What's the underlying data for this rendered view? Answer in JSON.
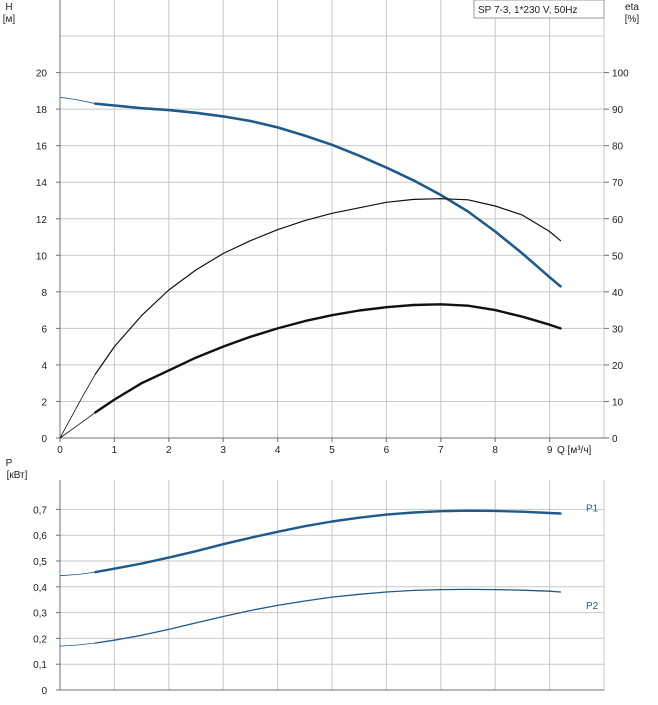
{
  "colors": {
    "grid": "#c8c8c8",
    "axis": "#707070",
    "blue": "#1f5a8c",
    "black": "#111111",
    "label_blue": "#2b5d8a"
  },
  "chart_data": [
    {
      "type": "line",
      "panel": "head-efficiency",
      "title": "SP 7-3, 1*230 V, 50Hz",
      "xlabel": "Q [м³/ч]",
      "ylabel": "H",
      "ylabel_unit": "[м]",
      "y2label": "eta",
      "y2label_unit": "[%]",
      "xlim": [
        0,
        10
      ],
      "ylim": [
        0,
        22
      ],
      "y2lim": [
        0,
        110
      ],
      "x_ticks": [
        0,
        1,
        2,
        3,
        4,
        5,
        6,
        7,
        8,
        9
      ],
      "y_ticks": [
        0,
        2,
        4,
        6,
        8,
        10,
        12,
        14,
        16,
        18,
        20
      ],
      "y2_ticks": [
        0,
        10,
        20,
        30,
        40,
        50,
        60,
        70,
        80,
        90,
        100
      ],
      "grid": true,
      "series": [
        {
          "key": "head",
          "axis": "left",
          "color": "blue",
          "width": 2.6,
          "extension": {
            "x": [
              0,
              0.25,
              0.5,
              0.65
            ],
            "y": [
              18.65,
              18.55,
              18.4,
              18.3
            ]
          },
          "x": [
            0.65,
            1,
            1.5,
            2,
            2.5,
            3,
            3.5,
            4,
            4.5,
            5,
            5.5,
            6,
            6.5,
            7,
            7.5,
            8,
            8.5,
            9,
            9.2
          ],
          "y": [
            18.3,
            18.2,
            18.05,
            17.95,
            17.8,
            17.6,
            17.35,
            17.0,
            16.55,
            16.05,
            15.45,
            14.8,
            14.1,
            13.3,
            12.4,
            11.3,
            10.1,
            8.8,
            8.3
          ]
        },
        {
          "key": "eta-pump",
          "axis": "right",
          "color": "black",
          "width": 1.2,
          "extension": {
            "x": [
              0,
              0.2,
              0.4,
              0.65
            ],
            "y": [
              0,
              5.5,
              11,
              17.5
            ]
          },
          "x": [
            0.65,
            1,
            1.5,
            2,
            2.5,
            3,
            3.5,
            4,
            4.5,
            5,
            5.5,
            6,
            6.5,
            7,
            7.5,
            8,
            8.5,
            9,
            9.2
          ],
          "y": [
            17.5,
            25,
            33.5,
            40.5,
            46,
            50.5,
            54,
            57,
            59.5,
            61.5,
            63,
            64.5,
            65.3,
            65.5,
            65.2,
            63.5,
            61,
            56.5,
            54
          ]
        },
        {
          "key": "eta-total",
          "axis": "right",
          "color": "black",
          "width": 2.4,
          "extension": {
            "x": [
              0,
              0.3,
              0.65
            ],
            "y": [
              0,
              3.2,
              7
            ]
          },
          "x": [
            0.65,
            1,
            1.5,
            2,
            2.5,
            3,
            3.5,
            4,
            4.5,
            5,
            5.5,
            6,
            6.5,
            7,
            7.5,
            8,
            8.5,
            9,
            9.2
          ],
          "y": [
            7,
            10.5,
            15,
            18.5,
            22,
            25,
            27.7,
            30,
            32,
            33.6,
            34.9,
            35.8,
            36.4,
            36.6,
            36.2,
            35,
            33.2,
            31,
            30
          ]
        }
      ]
    },
    {
      "type": "line",
      "panel": "power",
      "ylabel": "P",
      "ylabel_unit": "[кВт]",
      "xlim": [
        0,
        10
      ],
      "ylim": [
        0,
        0.8
      ],
      "y_ticks": [
        0,
        0.1,
        0.2,
        0.3,
        0.4,
        0.5,
        0.6,
        0.7
      ],
      "y_tick_labels": [
        "0",
        "0,1",
        "0,2",
        "0,3",
        "0,4",
        "0,5",
        "0,6",
        "0,7"
      ],
      "grid": true,
      "series": [
        {
          "name": "P1",
          "color": "blue",
          "width": 2.4,
          "extension": {
            "x": [
              0,
              0.35,
              0.65
            ],
            "y": [
              0.443,
              0.448,
              0.457
            ]
          },
          "x": [
            0.65,
            1,
            1.5,
            2,
            2.5,
            3,
            3.5,
            4,
            4.5,
            5,
            5.5,
            6,
            6.5,
            7,
            7.5,
            8,
            8.5,
            9,
            9.2
          ],
          "y": [
            0.457,
            0.47,
            0.49,
            0.513,
            0.538,
            0.565,
            0.59,
            0.613,
            0.635,
            0.653,
            0.668,
            0.68,
            0.688,
            0.693,
            0.695,
            0.694,
            0.691,
            0.686,
            0.684
          ]
        },
        {
          "name": "P2",
          "color": "blue",
          "width": 1.3,
          "extension": {
            "x": [
              0,
              0.35,
              0.65
            ],
            "y": [
              0.17,
              0.175,
              0.182
            ]
          },
          "x": [
            0.65,
            1,
            1.5,
            2,
            2.5,
            3,
            3.5,
            4,
            4.5,
            5,
            5.5,
            6,
            6.5,
            7,
            7.5,
            8,
            8.5,
            9,
            9.2
          ],
          "y": [
            0.182,
            0.193,
            0.212,
            0.235,
            0.26,
            0.285,
            0.308,
            0.328,
            0.345,
            0.36,
            0.371,
            0.38,
            0.386,
            0.389,
            0.39,
            0.389,
            0.387,
            0.383,
            0.38
          ]
        }
      ]
    }
  ]
}
